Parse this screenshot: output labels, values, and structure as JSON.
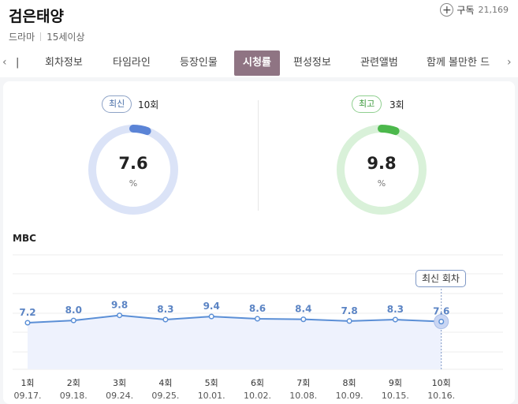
{
  "show": {
    "title": "검은태양",
    "genre": "드라마",
    "rating": "15세이상",
    "subscribe_label": "구독",
    "subscribe_count": "21,169"
  },
  "tabs": [
    {
      "label": "|"
    },
    {
      "label": "회차정보"
    },
    {
      "label": "타임라인"
    },
    {
      "label": "등장인물"
    },
    {
      "label": "시청률",
      "active": true
    },
    {
      "label": "편성정보"
    },
    {
      "label": "관련앨범"
    },
    {
      "label": "함께 볼만한 드"
    }
  ],
  "summary": {
    "latest": {
      "badge": "최신",
      "episode": "10회",
      "value": "7.6",
      "unit": "%",
      "color": "#5b84d6",
      "track": "#dbe3f7"
    },
    "max": {
      "badge": "최고",
      "episode": "3회",
      "value": "9.8",
      "unit": "%",
      "color": "#4cb84c",
      "track": "#d9f1d9"
    }
  },
  "channel": "MBC",
  "latest_marker_label": "최신 회차",
  "chart_data": {
    "type": "line",
    "series": [
      {
        "values": [
          7.2,
          8.0,
          9.8,
          8.3,
          9.4,
          8.6,
          8.4,
          7.8,
          8.3,
          7.6
        ],
        "value_labels": [
          "7.2",
          "8.0",
          "9.8",
          "8.3",
          "9.4",
          "8.6",
          "8.4",
          "7.8",
          "8.3",
          "7.6"
        ]
      }
    ],
    "episodes": [
      "1회",
      "2회",
      "3회",
      "4회",
      "5회",
      "6회",
      "7회",
      "8회",
      "9회",
      "10회"
    ],
    "dates": [
      "09.17.",
      "09.18.",
      "09.24.",
      "09.25.",
      "10.01.",
      "10.02.",
      "10.08.",
      "10.09.",
      "10.15.",
      "10.16."
    ],
    "grid": true,
    "line_color": "#5b8fd6",
    "fill_color": "#eef2fd"
  }
}
